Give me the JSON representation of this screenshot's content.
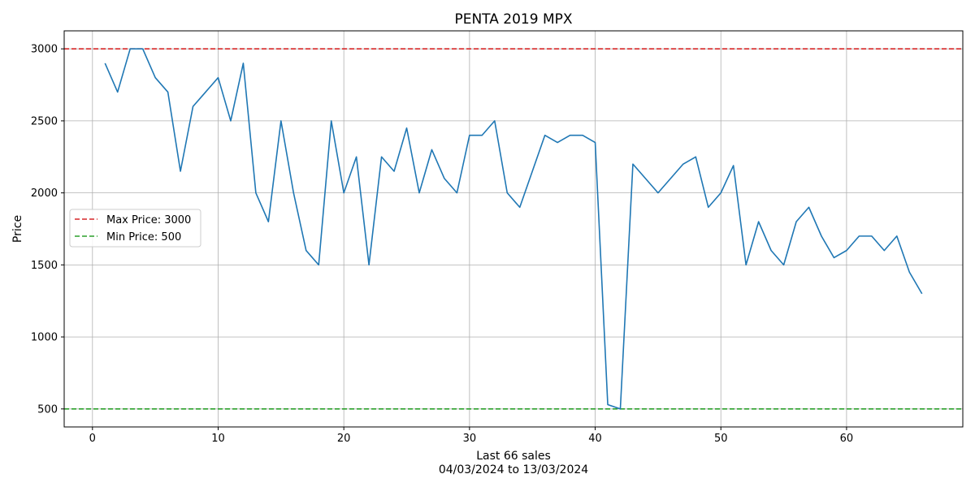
{
  "chart_data": {
    "type": "line",
    "title": "PENTA 2019 MPX",
    "xlabel": "Last 66 sales",
    "xlabel_sub": "04/03/2024 to 13/03/2024",
    "ylabel": "Price",
    "xlim": [
      -2.25,
      69.25
    ],
    "ylim": [
      375,
      3125
    ],
    "xticks": [
      0,
      10,
      20,
      30,
      40,
      50,
      60
    ],
    "yticks": [
      500,
      1000,
      1500,
      2000,
      2500,
      3000
    ],
    "grid": true,
    "legend_position": "center-left",
    "series": [
      {
        "color": "#1f77b4",
        "x": [
          1,
          2,
          3,
          4,
          5,
          6,
          7,
          8,
          9,
          10,
          11,
          12,
          13,
          14,
          15,
          16,
          17,
          18,
          19,
          20,
          21,
          22,
          23,
          24,
          25,
          26,
          27,
          28,
          29,
          30,
          31,
          32,
          33,
          34,
          35,
          36,
          37,
          38,
          39,
          40,
          41,
          42,
          43,
          44,
          45,
          46,
          47,
          48,
          49,
          50,
          51,
          52,
          53,
          54,
          55,
          56,
          57,
          58,
          59,
          60,
          61,
          62,
          63,
          64,
          65,
          66
        ],
        "y": [
          2900,
          2700,
          3000,
          3000,
          2800,
          2700,
          2150,
          2600,
          2700,
          2800,
          2500,
          2900,
          2000,
          1800,
          2500,
          2000,
          1600,
          1500,
          2500,
          2000,
          2250,
          1500,
          2250,
          2150,
          2450,
          2000,
          2300,
          2100,
          2000,
          2400,
          2400,
          2500,
          2000,
          1900,
          2150,
          2400,
          2350,
          2400,
          2400,
          2350,
          530,
          500,
          2200,
          2100,
          2000,
          2100,
          2200,
          2250,
          1900,
          2000,
          2190,
          1500,
          1800,
          1600,
          1500,
          1800,
          1900,
          1700,
          1550,
          1600,
          1700,
          1700,
          1600,
          1700,
          1450,
          1300
        ]
      }
    ],
    "reference_lines": [
      {
        "name": "Max Price: 3000",
        "value": 3000,
        "color": "#d62728",
        "style": "dashed"
      },
      {
        "name": "Min Price: 500",
        "value": 500,
        "color": "#2ca02c",
        "style": "dashed"
      }
    ]
  }
}
